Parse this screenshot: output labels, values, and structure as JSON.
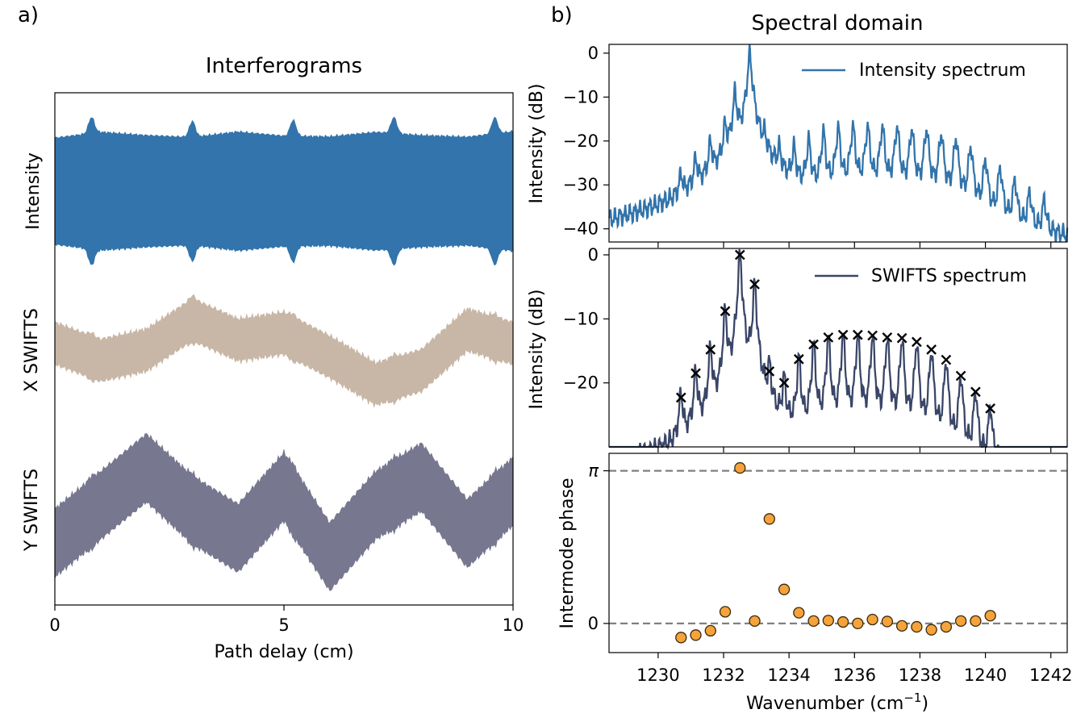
{
  "panels": {
    "a": {
      "letter": "a)",
      "title": "Interferograms",
      "xlabel": "Path delay (cm)",
      "trace_labels": [
        "Intensity",
        "X SWIFTS",
        "Y SWIFTS"
      ]
    },
    "b": {
      "letter": "b)",
      "title": "Spectral domain",
      "xlabel_main": "Wavenumber (cm",
      "xlabel_sup": "−1",
      "xlabel_end": ")",
      "ylabel_intensity": "Intensity (dB)",
      "ylabel_swifts": "Intensity (dB)",
      "ylabel_phase": "Intermode phase",
      "legend_intensity": "Intensity spectrum",
      "legend_swifts": "SWIFTS spectrum"
    }
  },
  "colors": {
    "intensity": "#3274ab",
    "x_swifts": "#c8b7a6",
    "y_swifts": "#77778f",
    "swifts_line": "#3a4668",
    "phase_points": "#f5a33a",
    "reference": "#808080"
  },
  "chart_data": [
    {
      "id": "interferograms",
      "type": "area",
      "title": "Interferograms",
      "xlabel": "Path delay (cm)",
      "ylabel": "",
      "xlim": [
        0,
        10
      ],
      "xticks": [
        0,
        5,
        10
      ],
      "xtick_labels": [
        "0",
        "5",
        "10"
      ],
      "burst_positions_cm": [
        0.8,
        3.0,
        5.2,
        7.4,
        9.6
      ],
      "series": [
        {
          "name": "Intensity",
          "upper": [
            0.0,
            0.9,
            0.4,
            0.1,
            0.95,
            0.3,
            0.2,
            0.9,
            0.4,
            0.15,
            1.0
          ],
          "offset": 2,
          "color": "#3274ab"
        },
        {
          "name": "X SWIFTS",
          "mean": [
            0.2,
            -0.3,
            0.0,
            0.9,
            0.3,
            0.5,
            -0.2,
            -1.0,
            -0.6,
            0.6,
            0.2
          ],
          "offset": 1,
          "color": "#c8b7a6"
        },
        {
          "name": "Y SWIFTS",
          "mean": [
            -0.6,
            0.2,
            1.0,
            0.1,
            -0.5,
            0.6,
            -0.9,
            0.2,
            0.8,
            -0.4,
            0.5
          ],
          "offset": 0,
          "color": "#77778f"
        }
      ]
    },
    {
      "id": "intensity-spectrum",
      "type": "line",
      "legend": "Intensity spectrum",
      "ylabel": "Intensity (dB)",
      "xlim": [
        1228.5,
        1242.5
      ],
      "ylim": [
        -43,
        2
      ],
      "yticks": [
        0,
        -10,
        -20,
        -30,
        -40
      ],
      "ytick_labels": [
        "0",
        "−10",
        "−20",
        "−30",
        "−40"
      ],
      "mode_spacing": 0.45,
      "peaks": [
        {
          "x": 1230.7,
          "y": -29
        },
        {
          "x": 1231.15,
          "y": -25
        },
        {
          "x": 1231.6,
          "y": -21
        },
        {
          "x": 1232.05,
          "y": -17
        },
        {
          "x": 1232.35,
          "y": -9
        },
        {
          "x": 1232.8,
          "y": 0
        },
        {
          "x": 1233.25,
          "y": -21
        },
        {
          "x": 1233.7,
          "y": -23
        },
        {
          "x": 1234.15,
          "y": -22
        },
        {
          "x": 1234.6,
          "y": -20
        },
        {
          "x": 1235.05,
          "y": -18
        },
        {
          "x": 1235.5,
          "y": -17
        },
        {
          "x": 1235.95,
          "y": -16.5
        },
        {
          "x": 1236.4,
          "y": -16.5
        },
        {
          "x": 1236.85,
          "y": -16.5
        },
        {
          "x": 1237.3,
          "y": -16.5
        },
        {
          "x": 1237.75,
          "y": -17
        },
        {
          "x": 1238.2,
          "y": -17
        },
        {
          "x": 1238.65,
          "y": -18
        },
        {
          "x": 1239.1,
          "y": -19
        },
        {
          "x": 1239.55,
          "y": -21
        },
        {
          "x": 1240.0,
          "y": -24
        },
        {
          "x": 1240.45,
          "y": -26
        },
        {
          "x": 1240.9,
          "y": -29
        },
        {
          "x": 1241.35,
          "y": -32
        },
        {
          "x": 1241.8,
          "y": -34
        }
      ]
    },
    {
      "id": "swifts-spectrum",
      "type": "line",
      "legend": "SWIFTS spectrum",
      "ylabel": "Intensity (dB)",
      "xlim": [
        1228.5,
        1242.5
      ],
      "ylim": [
        -30,
        1
      ],
      "yticks": [
        0,
        -10,
        -20
      ],
      "ytick_labels": [
        "0",
        "−10",
        "−20"
      ],
      "markers": [
        {
          "x": 1230.7,
          "y": -22.3
        },
        {
          "x": 1231.15,
          "y": -18.5
        },
        {
          "x": 1231.6,
          "y": -14.8
        },
        {
          "x": 1232.05,
          "y": -8.8
        },
        {
          "x": 1232.5,
          "y": 0.0
        },
        {
          "x": 1232.95,
          "y": -4.6
        },
        {
          "x": 1233.4,
          "y": -18.2
        },
        {
          "x": 1233.85,
          "y": -20.0
        },
        {
          "x": 1234.3,
          "y": -16.3
        },
        {
          "x": 1234.75,
          "y": -14.0
        },
        {
          "x": 1235.2,
          "y": -12.9
        },
        {
          "x": 1235.65,
          "y": -12.5
        },
        {
          "x": 1236.1,
          "y": -12.5
        },
        {
          "x": 1236.55,
          "y": -12.6
        },
        {
          "x": 1237.0,
          "y": -12.9
        },
        {
          "x": 1237.45,
          "y": -13.0
        },
        {
          "x": 1237.9,
          "y": -13.6
        },
        {
          "x": 1238.35,
          "y": -14.8
        },
        {
          "x": 1238.8,
          "y": -16.4
        },
        {
          "x": 1239.25,
          "y": -18.9
        },
        {
          "x": 1239.7,
          "y": -21.4
        },
        {
          "x": 1240.15,
          "y": -24.0
        }
      ]
    },
    {
      "id": "intermode-phase",
      "type": "scatter",
      "ylabel": "Intermode phase",
      "xlabel": "Wavenumber (cm−1)",
      "xlim": [
        1228.5,
        1242.5
      ],
      "ylim": [
        -0.6,
        3.5
      ],
      "xticks": [
        1230,
        1232,
        1234,
        1236,
        1238,
        1240,
        1242
      ],
      "xtick_labels": [
        "1230",
        "1232",
        "1234",
        "1236",
        "1238",
        "1240",
        "1242"
      ],
      "yticks": [
        0,
        3.14159
      ],
      "ytick_labels": [
        "0",
        "π"
      ],
      "reference_lines": [
        0,
        3.14159
      ],
      "points": [
        {
          "x": 1230.7,
          "y": -0.29
        },
        {
          "x": 1231.15,
          "y": -0.24
        },
        {
          "x": 1231.6,
          "y": -0.15
        },
        {
          "x": 1232.05,
          "y": 0.24
        },
        {
          "x": 1232.5,
          "y": 3.2
        },
        {
          "x": 1232.95,
          "y": 0.05
        },
        {
          "x": 1233.4,
          "y": 2.15
        },
        {
          "x": 1233.85,
          "y": 0.7
        },
        {
          "x": 1234.3,
          "y": 0.22
        },
        {
          "x": 1234.75,
          "y": 0.05
        },
        {
          "x": 1235.2,
          "y": 0.06
        },
        {
          "x": 1235.65,
          "y": 0.03
        },
        {
          "x": 1236.1,
          "y": 0.0
        },
        {
          "x": 1236.55,
          "y": 0.08
        },
        {
          "x": 1237.0,
          "y": 0.04
        },
        {
          "x": 1237.45,
          "y": -0.05
        },
        {
          "x": 1237.9,
          "y": -0.07
        },
        {
          "x": 1238.35,
          "y": -0.13
        },
        {
          "x": 1238.8,
          "y": -0.07
        },
        {
          "x": 1239.25,
          "y": 0.05
        },
        {
          "x": 1239.7,
          "y": 0.05
        },
        {
          "x": 1240.15,
          "y": 0.16
        }
      ]
    }
  ]
}
